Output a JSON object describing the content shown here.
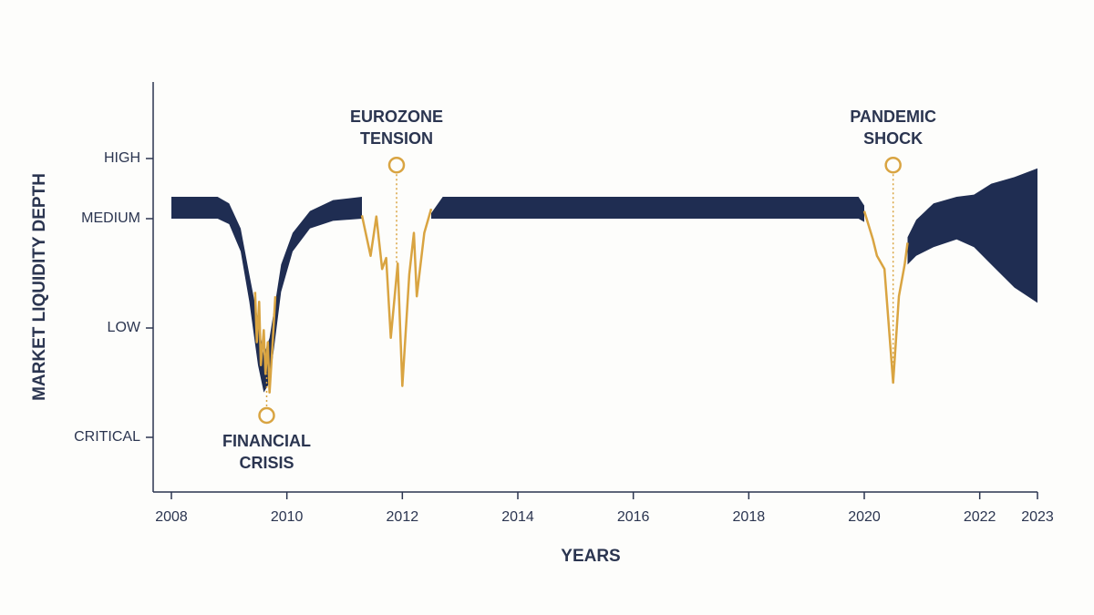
{
  "chart_data": {
    "type": "band",
    "xlabel": "YEARS",
    "ylabel": "MARKET LIQUIDITY DEPTH",
    "xlim": [
      2008,
      2023
    ],
    "xticks": [
      2008,
      2010,
      2012,
      2014,
      2016,
      2018,
      2020,
      2022,
      2023
    ],
    "ylim": [
      -0.5,
      3.25
    ],
    "yticks": [
      {
        "value": 0,
        "label": "CRITICAL"
      },
      {
        "value": 1,
        "label": "LOW"
      },
      {
        "value": 2,
        "label": "MEDIUM"
      },
      {
        "value": 2.55,
        "label": "HIGH"
      }
    ],
    "band": {
      "color": "#1f2d52",
      "x": [
        2008,
        2008.8,
        2009.0,
        2009.2,
        2009.35,
        2009.5,
        2009.6,
        2009.7,
        2009.8,
        2009.9,
        2010.1,
        2010.4,
        2010.8,
        2011.3,
        null,
        2012.5,
        2012.7,
        2019.9,
        2020.0,
        null,
        2020.75,
        2020.9,
        2021.2,
        2021.6,
        2021.9,
        2022.2,
        2022.6,
        2023
      ],
      "upper": [
        2.2,
        2.2,
        2.14,
        1.91,
        1.49,
        1.08,
        0.75,
        0.91,
        1.24,
        1.58,
        1.87,
        2.07,
        2.17,
        2.2,
        null,
        2.05,
        2.2,
        2.2,
        2.12,
        null,
        1.83,
        1.99,
        2.14,
        2.2,
        2.22,
        2.32,
        2.38,
        2.46
      ],
      "lower": [
        2.0,
        2.0,
        1.95,
        1.7,
        1.24,
        0.66,
        0.41,
        0.5,
        0.91,
        1.33,
        1.7,
        1.91,
        1.98,
        2.0,
        null,
        2.0,
        2.0,
        2.0,
        1.97,
        null,
        1.58,
        1.66,
        1.74,
        1.81,
        1.74,
        1.58,
        1.37,
        1.23
      ]
    },
    "line_color": "#d9a441",
    "lines": [
      {
        "x": [
          2009.45,
          2009.48,
          2009.52,
          2009.55,
          2009.6,
          2009.63,
          2009.67,
          2009.7,
          2009.75,
          2009.8
        ],
        "values": [
          1.33,
          0.87,
          1.24,
          0.66,
          0.98,
          0.58,
          0.87,
          0.41,
          0.83,
          1.29
        ]
      },
      {
        "x": [
          2011.3,
          2011.45,
          2011.55,
          2011.65,
          2011.72,
          2011.8,
          2011.92,
          2012.0,
          2012.12,
          2012.2,
          2012.25,
          2012.38,
          2012.5
        ],
        "values": [
          2.03,
          1.66,
          2.02,
          1.54,
          1.64,
          0.91,
          1.59,
          0.47,
          1.49,
          1.87,
          1.29,
          1.87,
          2.09
        ]
      },
      {
        "x": [
          2020.0,
          2020.15,
          2020.22,
          2020.35,
          2020.5,
          2020.6,
          2020.7,
          2020.75
        ],
        "values": [
          2.07,
          1.81,
          1.66,
          1.54,
          0.5,
          1.29,
          1.58,
          1.78
        ]
      }
    ],
    "annotations": [
      {
        "text": [
          "FINANCIAL",
          "CRISIS"
        ],
        "x": 2009.65,
        "y": 0.2
      },
      {
        "text": [
          "EUROZONE",
          "TENSION"
        ],
        "x": 2011.9,
        "y": 2.49
      },
      {
        "text": [
          "PANDEMIC",
          "SHOCK"
        ],
        "x": 2020.5,
        "y": 2.49
      }
    ]
  }
}
